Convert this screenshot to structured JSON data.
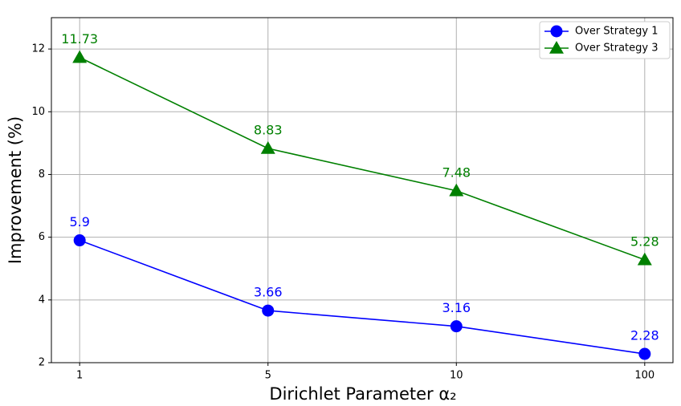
{
  "chart_data": {
    "type": "line",
    "x_label": "Dirichlet Parameter α₂",
    "y_label": "Improvement (%)",
    "categories": [
      "1",
      "5",
      "10",
      "100"
    ],
    "series": [
      {
        "name": "Over Strategy 1",
        "color": "#0000ff",
        "marker": "circle",
        "values": [
          5.9,
          3.66,
          3.16,
          2.28
        ]
      },
      {
        "name": "Over Strategy 3",
        "color": "#008000",
        "marker": "triangle",
        "values": [
          11.73,
          8.83,
          7.48,
          5.28
        ]
      }
    ],
    "ylim": [
      2,
      13
    ],
    "yticks": [
      2,
      4,
      6,
      8,
      10,
      12
    ],
    "grid": true,
    "legend": "upper right"
  }
}
